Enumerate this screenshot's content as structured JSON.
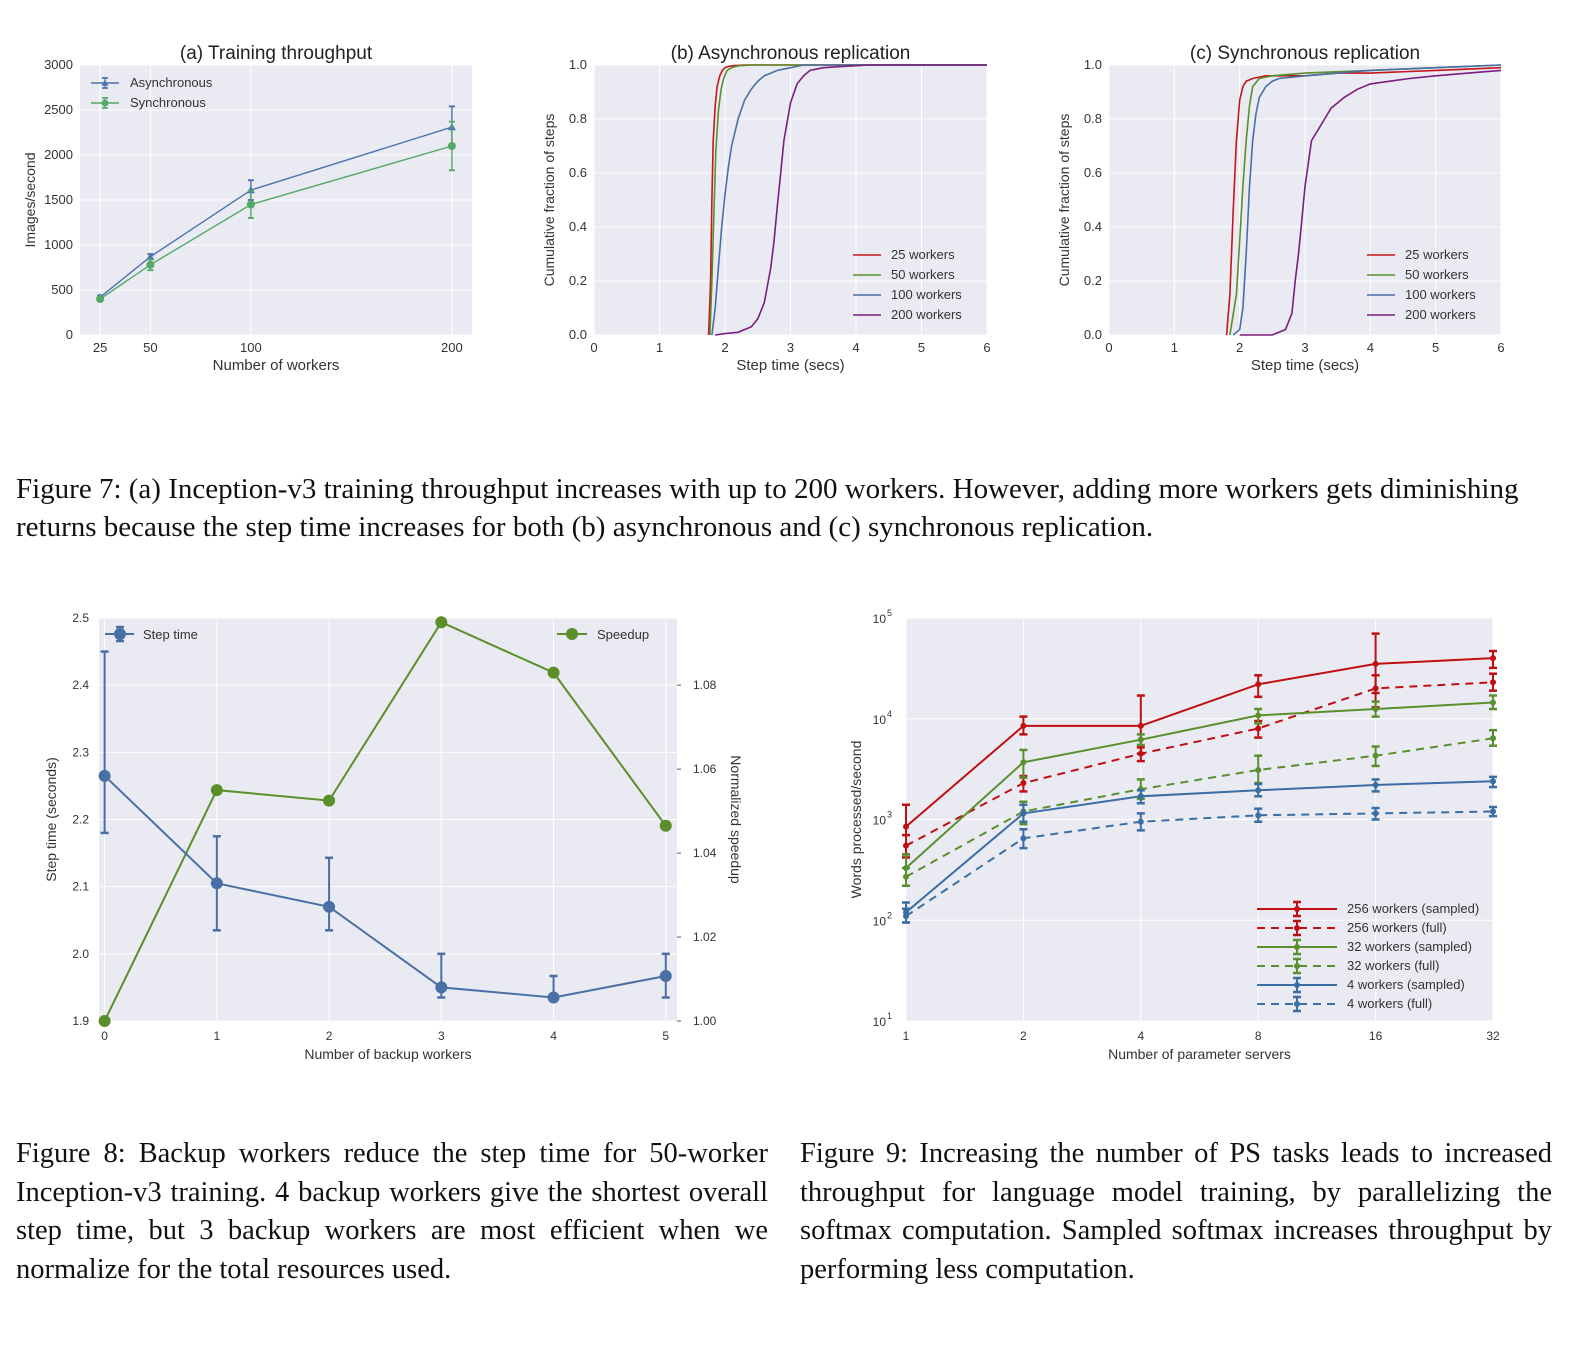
{
  "colors": {
    "red": "#c4161c",
    "green": "#5b8f2a",
    "blue": "#4a6fa5",
    "purple": "#7b1e7e",
    "async_blue": "#4c72b0",
    "sync_green": "#55a868",
    "s9_red": "#c00f12",
    "s9_green": "#5a8f2e",
    "s9_blue": "#3a6ea5"
  },
  "figure7": {
    "caption": "Figure 7: (a) Inception-v3 training throughput increases with up to 200 workers. However, adding more workers gets diminishing returns because the step time increases for both (b) asynchronous and (c) synchronous replication."
  },
  "figure8": {
    "caption": "Figure 8: Backup workers reduce the step time for 50-worker Inception-v3 training. 4 backup workers give the shortest overall step time, but 3 backup workers are most efficient when we normalize for the total resources used."
  },
  "figure9": {
    "caption": "Figure 9: Increasing the number of PS tasks leads to increased throughput for language model training, by parallelizing the softmax computation. Sampled softmax increases throughput by performing less computation."
  },
  "chart_data": [
    {
      "id": "fig7a",
      "type": "line",
      "title": "(a) Training throughput",
      "xlabel": "Number of workers",
      "ylabel": "Images/second",
      "xticks": [
        25,
        50,
        100,
        200
      ],
      "xticklabels": [
        "25",
        "50",
        "100",
        "200"
      ],
      "yticks": [
        0,
        500,
        1000,
        1500,
        2000,
        2500,
        3000
      ],
      "yticklabels": [
        "0",
        "500",
        "1000",
        "1500",
        "2000",
        "2500",
        "3000"
      ],
      "xlim": [
        15,
        210
      ],
      "ylim": [
        0,
        3000
      ],
      "legend": "top-left",
      "grid": true,
      "x": [
        25,
        50,
        100,
        200
      ],
      "series": [
        {
          "name": "Asynchronous",
          "color": "#4c72b0",
          "marker": "triangle",
          "values": [
            420,
            870,
            1610,
            2310
          ],
          "err": [
            [
              400,
              440
            ],
            [
              840,
              900
            ],
            [
              1500,
              1720
            ],
            [
              2080,
              2540
            ]
          ]
        },
        {
          "name": "Synchronous",
          "color": "#55a868",
          "marker": "circle",
          "values": [
            400,
            780,
            1450,
            2100
          ],
          "err": [
            [
              380,
              420
            ],
            [
              720,
              840
            ],
            [
              1300,
              1600
            ],
            [
              1830,
              2370
            ]
          ]
        }
      ]
    },
    {
      "id": "fig7b",
      "type": "line",
      "title": "(b) Asynchronous replication",
      "xlabel": "Step time (secs)",
      "ylabel": "Cumulative fraction of steps",
      "xticks": [
        0,
        1,
        2,
        3,
        4,
        5,
        6
      ],
      "xticklabels": [
        "0",
        "1",
        "2",
        "3",
        "4",
        "5",
        "6"
      ],
      "yticks": [
        0,
        0.2,
        0.4,
        0.6,
        0.8,
        1.0
      ],
      "yticklabels": [
        "0.0",
        "0.2",
        "0.4",
        "0.6",
        "0.8",
        "1.0"
      ],
      "xlim": [
        0,
        6
      ],
      "ylim": [
        0,
        1
      ],
      "legend": "lower-right",
      "grid": true,
      "series": [
        {
          "name": "25 workers",
          "color": "#c4161c",
          "x": [
            1.75,
            1.78,
            1.8,
            1.82,
            1.85,
            1.88,
            1.92,
            1.96,
            2.0,
            2.05,
            2.15,
            2.3,
            6.0
          ],
          "values": [
            0,
            0.2,
            0.5,
            0.72,
            0.85,
            0.92,
            0.96,
            0.98,
            0.99,
            0.995,
            0.998,
            1.0,
            1.0
          ]
        },
        {
          "name": "50 workers",
          "color": "#5b8f2a",
          "x": [
            1.77,
            1.8,
            1.83,
            1.86,
            1.9,
            1.94,
            1.98,
            2.03,
            2.1,
            2.2,
            2.4,
            6.0
          ],
          "values": [
            0,
            0.2,
            0.45,
            0.68,
            0.83,
            0.91,
            0.95,
            0.98,
            0.99,
            0.997,
            1.0,
            1.0
          ]
        },
        {
          "name": "100 workers",
          "color": "#4a6fa5",
          "x": [
            1.8,
            1.85,
            1.9,
            1.95,
            2.0,
            2.05,
            2.1,
            2.2,
            2.3,
            2.4,
            2.5,
            2.6,
            2.7,
            2.8,
            3.0,
            3.2,
            6.0
          ],
          "values": [
            0,
            0.1,
            0.25,
            0.4,
            0.52,
            0.62,
            0.7,
            0.8,
            0.87,
            0.91,
            0.94,
            0.96,
            0.97,
            0.98,
            0.99,
            1.0,
            1.0
          ]
        },
        {
          "name": "200 workers",
          "color": "#7b1e7e",
          "x": [
            1.85,
            2.0,
            2.2,
            2.4,
            2.5,
            2.6,
            2.7,
            2.75,
            2.8,
            2.85,
            2.9,
            3.0,
            3.1,
            3.2,
            3.3,
            3.5,
            3.8,
            4.2,
            6.0
          ],
          "values": [
            0,
            0.005,
            0.01,
            0.03,
            0.06,
            0.12,
            0.25,
            0.35,
            0.48,
            0.6,
            0.72,
            0.86,
            0.93,
            0.96,
            0.98,
            0.99,
            0.995,
            1.0,
            1.0
          ]
        }
      ]
    },
    {
      "id": "fig7c",
      "type": "line",
      "title": "(c) Synchronous replication",
      "xlabel": "Step time (secs)",
      "ylabel": "Cumulative fraction of steps",
      "xticks": [
        0,
        1,
        2,
        3,
        4,
        5,
        6
      ],
      "xticklabels": [
        "0",
        "1",
        "2",
        "3",
        "4",
        "5",
        "6"
      ],
      "yticks": [
        0,
        0.2,
        0.4,
        0.6,
        0.8,
        1.0
      ],
      "yticklabels": [
        "0.0",
        "0.2",
        "0.4",
        "0.6",
        "0.8",
        "1.0"
      ],
      "xlim": [
        0,
        6
      ],
      "ylim": [
        0,
        1
      ],
      "legend": "lower-right",
      "grid": true,
      "series": [
        {
          "name": "25 workers",
          "color": "#c4161c",
          "x": [
            1.8,
            1.85,
            1.9,
            1.95,
            2.0,
            2.05,
            2.1,
            2.2,
            2.4,
            3.0,
            3.5,
            4.0,
            5.0,
            6.0
          ],
          "values": [
            0,
            0.15,
            0.45,
            0.72,
            0.87,
            0.92,
            0.94,
            0.95,
            0.96,
            0.96,
            0.97,
            0.97,
            0.98,
            0.99
          ]
        },
        {
          "name": "50 workers",
          "color": "#5b8f2a",
          "x": [
            1.85,
            1.95,
            2.0,
            2.05,
            2.1,
            2.15,
            2.2,
            2.3,
            2.5,
            3.0,
            4.0,
            5.0,
            6.0
          ],
          "values": [
            0,
            0.15,
            0.35,
            0.55,
            0.72,
            0.85,
            0.92,
            0.95,
            0.96,
            0.97,
            0.98,
            0.99,
            1.0
          ]
        },
        {
          "name": "100 workers",
          "color": "#4a6fa5",
          "x": [
            1.9,
            2.0,
            2.05,
            2.1,
            2.15,
            2.2,
            2.25,
            2.3,
            2.4,
            2.5,
            2.6,
            3.0,
            3.5,
            4.0,
            5.0,
            6.0
          ],
          "values": [
            0,
            0.02,
            0.1,
            0.3,
            0.55,
            0.72,
            0.82,
            0.88,
            0.92,
            0.94,
            0.95,
            0.96,
            0.97,
            0.98,
            0.99,
            1.0
          ]
        },
        {
          "name": "200 workers",
          "color": "#7b1e7e",
          "x": [
            2.0,
            2.5,
            2.6,
            2.7,
            2.8,
            2.85,
            2.9,
            2.95,
            3.0,
            3.1,
            3.2,
            3.3,
            3.4,
            3.6,
            3.8,
            4.0,
            4.3,
            4.6,
            5.0,
            5.5,
            6.0
          ],
          "values": [
            0,
            0,
            0.01,
            0.02,
            0.08,
            0.2,
            0.3,
            0.42,
            0.55,
            0.72,
            0.76,
            0.8,
            0.84,
            0.88,
            0.91,
            0.93,
            0.94,
            0.95,
            0.96,
            0.97,
            0.98
          ]
        }
      ]
    },
    {
      "id": "fig8",
      "type": "line",
      "title": "",
      "xlabel": "Number of backup workers",
      "ylabel": "Step time (seconds)",
      "y2label": "Normalized speedup",
      "xticks": [
        0,
        1,
        2,
        3,
        4,
        5
      ],
      "xticklabels": [
        "0",
        "1",
        "2",
        "3",
        "4",
        "5"
      ],
      "yticks": [
        1.9,
        2.0,
        2.1,
        2.2,
        2.3,
        2.4,
        2.5
      ],
      "yticklabels": [
        "1.9",
        "2.0",
        "2.1",
        "2.2",
        "2.3",
        "2.4",
        "2.5"
      ],
      "y2ticks": [
        1.0,
        1.02,
        1.04,
        1.06,
        1.08
      ],
      "y2ticklabels": [
        "1.00",
        "1.02",
        "1.04",
        "1.06",
        "1.08"
      ],
      "xlim": [
        -0.05,
        5.1
      ],
      "ylim": [
        1.9,
        2.5
      ],
      "y2lim": [
        1.0,
        1.096
      ],
      "grid": true,
      "legend": "top-left and top-right",
      "x": [
        0,
        1,
        2,
        3,
        4,
        5
      ],
      "series": [
        {
          "name": "Step time",
          "axis": "left",
          "color": "#4a6fa5",
          "values": [
            2.265,
            2.105,
            2.07,
            1.95,
            1.935,
            1.967
          ],
          "err": [
            [
              2.18,
              2.45
            ],
            [
              2.035,
              2.175
            ],
            [
              2.035,
              2.143
            ],
            [
              1.935,
              2.0
            ],
            [
              1.935,
              1.967
            ],
            [
              1.935,
              2.0
            ]
          ]
        },
        {
          "name": "Speedup",
          "axis": "right",
          "color": "#5b8f2a",
          "values": [
            1.0,
            1.055,
            1.0525,
            1.095,
            1.083,
            1.0465
          ]
        }
      ]
    },
    {
      "id": "fig9",
      "type": "line",
      "title": "",
      "xlabel": "Number of parameter servers",
      "ylabel": "Words processed/second",
      "xscale": "log2",
      "yscale": "log10",
      "xticks": [
        1,
        2,
        4,
        8,
        16,
        32
      ],
      "xticklabels": [
        "1",
        "2",
        "4",
        "8",
        "16",
        "32"
      ],
      "yticks": [
        10,
        100,
        1000,
        10000,
        100000
      ],
      "yticklabels": [
        "10",
        "10",
        "10",
        "10",
        "10"
      ],
      "ytickexp": [
        "1",
        "2",
        "3",
        "4",
        "5"
      ],
      "xlim": [
        1,
        32
      ],
      "ylim": [
        10,
        100000
      ],
      "legend": "lower-right",
      "grid": true,
      "x": [
        1,
        2,
        4,
        8,
        16,
        32
      ],
      "series": [
        {
          "name": "256 workers (sampled)",
          "color": "#c00f12",
          "dash": false,
          "values": [
            850,
            8500,
            8500,
            22000,
            35000,
            40000
          ],
          "err": [
            [
              450,
              1400
            ],
            [
              7000,
              10500
            ],
            [
              4500,
              17000
            ],
            [
              16500,
              27000
            ],
            [
              18000,
              70000
            ],
            [
              32000,
              47000
            ]
          ]
        },
        {
          "name": "256 workers (full)",
          "color": "#c00f12",
          "dash": true,
          "values": [
            550,
            2300,
            4500,
            8000,
            20000,
            23000
          ],
          "err": [
            [
              420,
              700
            ],
            [
              1900,
              2700
            ],
            [
              3800,
              5200
            ],
            [
              6500,
              9500
            ],
            [
              13000,
              27000
            ],
            [
              19000,
              28000
            ]
          ]
        },
        {
          "name": "32 workers (sampled)",
          "color": "#5a8f2e",
          "dash": false,
          "values": [
            330,
            3700,
            6200,
            10800,
            12500,
            14500
          ],
          "err": [
            [
              220,
              450
            ],
            [
              2600,
              4900
            ],
            [
              5500,
              7000
            ],
            [
              9000,
              12500
            ],
            [
              10500,
              14800
            ],
            [
              12500,
              17000
            ]
          ]
        },
        {
          "name": "32 workers (full)",
          "color": "#5a8f2e",
          "dash": true,
          "values": [
            270,
            1200,
            2000,
            3100,
            4300,
            6400
          ],
          "err": [
            [
              220,
              330
            ],
            [
              900,
              1500
            ],
            [
              1600,
              2500
            ],
            [
              2300,
              4300
            ],
            [
              3400,
              5300
            ],
            [
              5400,
              7700
            ]
          ]
        },
        {
          "name": "4 workers (sampled)",
          "color": "#3a6ea5",
          "dash": false,
          "values": [
            120,
            1150,
            1700,
            1950,
            2200,
            2400
          ],
          "err": [
            [
              95,
              150
            ],
            [
              950,
              1400
            ],
            [
              1450,
              1950
            ],
            [
              1700,
              2250
            ],
            [
              1900,
              2500
            ],
            [
              2100,
              2650
            ]
          ]
        },
        {
          "name": "4 workers (full)",
          "color": "#3a6ea5",
          "dash": true,
          "values": [
            110,
            650,
            950,
            1100,
            1150,
            1200
          ],
          "err": [
            [
              95,
              130
            ],
            [
              520,
              800
            ],
            [
              780,
              1150
            ],
            [
              950,
              1280
            ],
            [
              1000,
              1300
            ],
            [
              1080,
              1330
            ]
          ]
        }
      ]
    }
  ]
}
